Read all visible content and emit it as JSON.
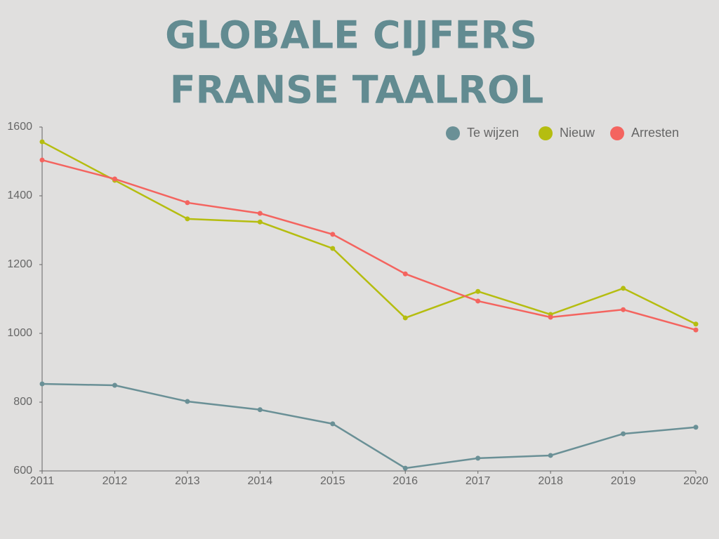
{
  "chart_data": {
    "type": "line",
    "title": [
      "GLOBALE CIJFERS",
      "FRANSE TAALROL"
    ],
    "x": [
      2011,
      2012,
      2013,
      2014,
      2015,
      2016,
      2017,
      2018,
      2019,
      2020
    ],
    "xlim": [
      2011,
      2020
    ],
    "xticks": [
      2011,
      2012,
      2013,
      2014,
      2015,
      2016,
      2017,
      2018,
      2019,
      2020
    ],
    "ylim": [
      600,
      1600
    ],
    "yticks": [
      600,
      800,
      1000,
      1200,
      1400,
      1600
    ],
    "legend": "top-right",
    "series": [
      {
        "name": "Te wijzen",
        "color": "#6a9096",
        "values": [
          853,
          849,
          802,
          778,
          737,
          608,
          637,
          645,
          708,
          727
        ]
      },
      {
        "name": "Nieuw",
        "color": "#b5bd10",
        "values": [
          1557,
          1445,
          1333,
          1324,
          1247,
          1045,
          1122,
          1055,
          1131,
          1027
        ]
      },
      {
        "name": "Arresten",
        "color": "#f4645f",
        "values": [
          1504,
          1449,
          1380,
          1349,
          1288,
          1173,
          1094,
          1047,
          1069,
          1010
        ]
      }
    ]
  }
}
